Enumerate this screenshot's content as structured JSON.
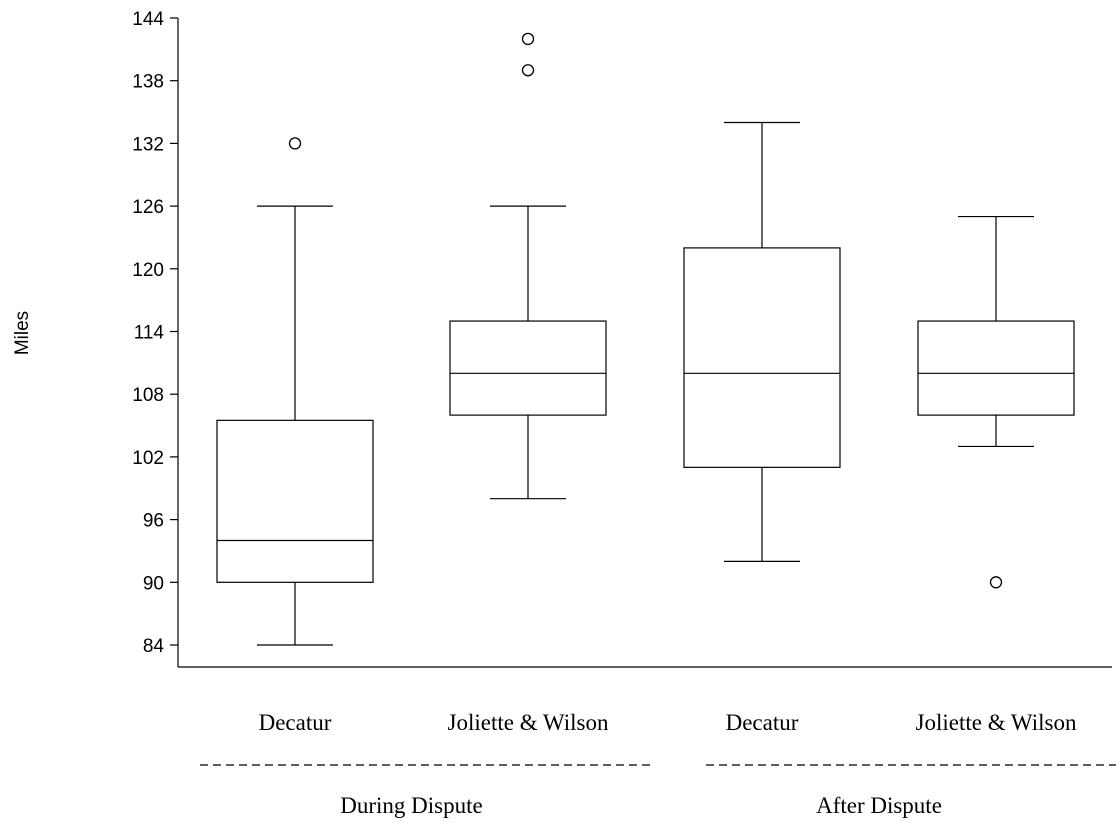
{
  "chart_data": {
    "type": "box",
    "title": "",
    "xlabel": "",
    "ylabel": "Miles",
    "ylim": [
      82,
      144
    ],
    "yticks": [
      84,
      90,
      96,
      102,
      108,
      114,
      120,
      126,
      132,
      138,
      144
    ],
    "categories": [
      "Decatur",
      "Joliette & Wilson",
      "Decatur",
      "Joliette & Wilson"
    ],
    "groups": [
      {
        "label": "During Dispute",
        "categories": [
          0,
          1
        ]
      },
      {
        "label": "After Dispute",
        "categories": [
          2,
          3
        ]
      }
    ],
    "boxes": [
      {
        "category": "Decatur",
        "group": "During Dispute",
        "whisker_low": 84,
        "q1": 90,
        "median": 94,
        "q3": 105.5,
        "whisker_high": 126,
        "outliers": [
          132
        ]
      },
      {
        "category": "Joliette & Wilson",
        "group": "During Dispute",
        "whisker_low": 98,
        "q1": 106,
        "median": 110,
        "q3": 115,
        "whisker_high": 126,
        "outliers": [
          139,
          142
        ]
      },
      {
        "category": "Decatur",
        "group": "After Dispute",
        "whisker_low": 92,
        "q1": 101,
        "median": 110,
        "q3": 122,
        "whisker_high": 134,
        "outliers": []
      },
      {
        "category": "Joliette & Wilson",
        "group": "After Dispute",
        "whisker_low": 103,
        "q1": 106,
        "median": 110,
        "q3": 115,
        "whisker_high": 125,
        "outliers": [
          90
        ]
      }
    ],
    "grid": false,
    "legend": "none"
  }
}
